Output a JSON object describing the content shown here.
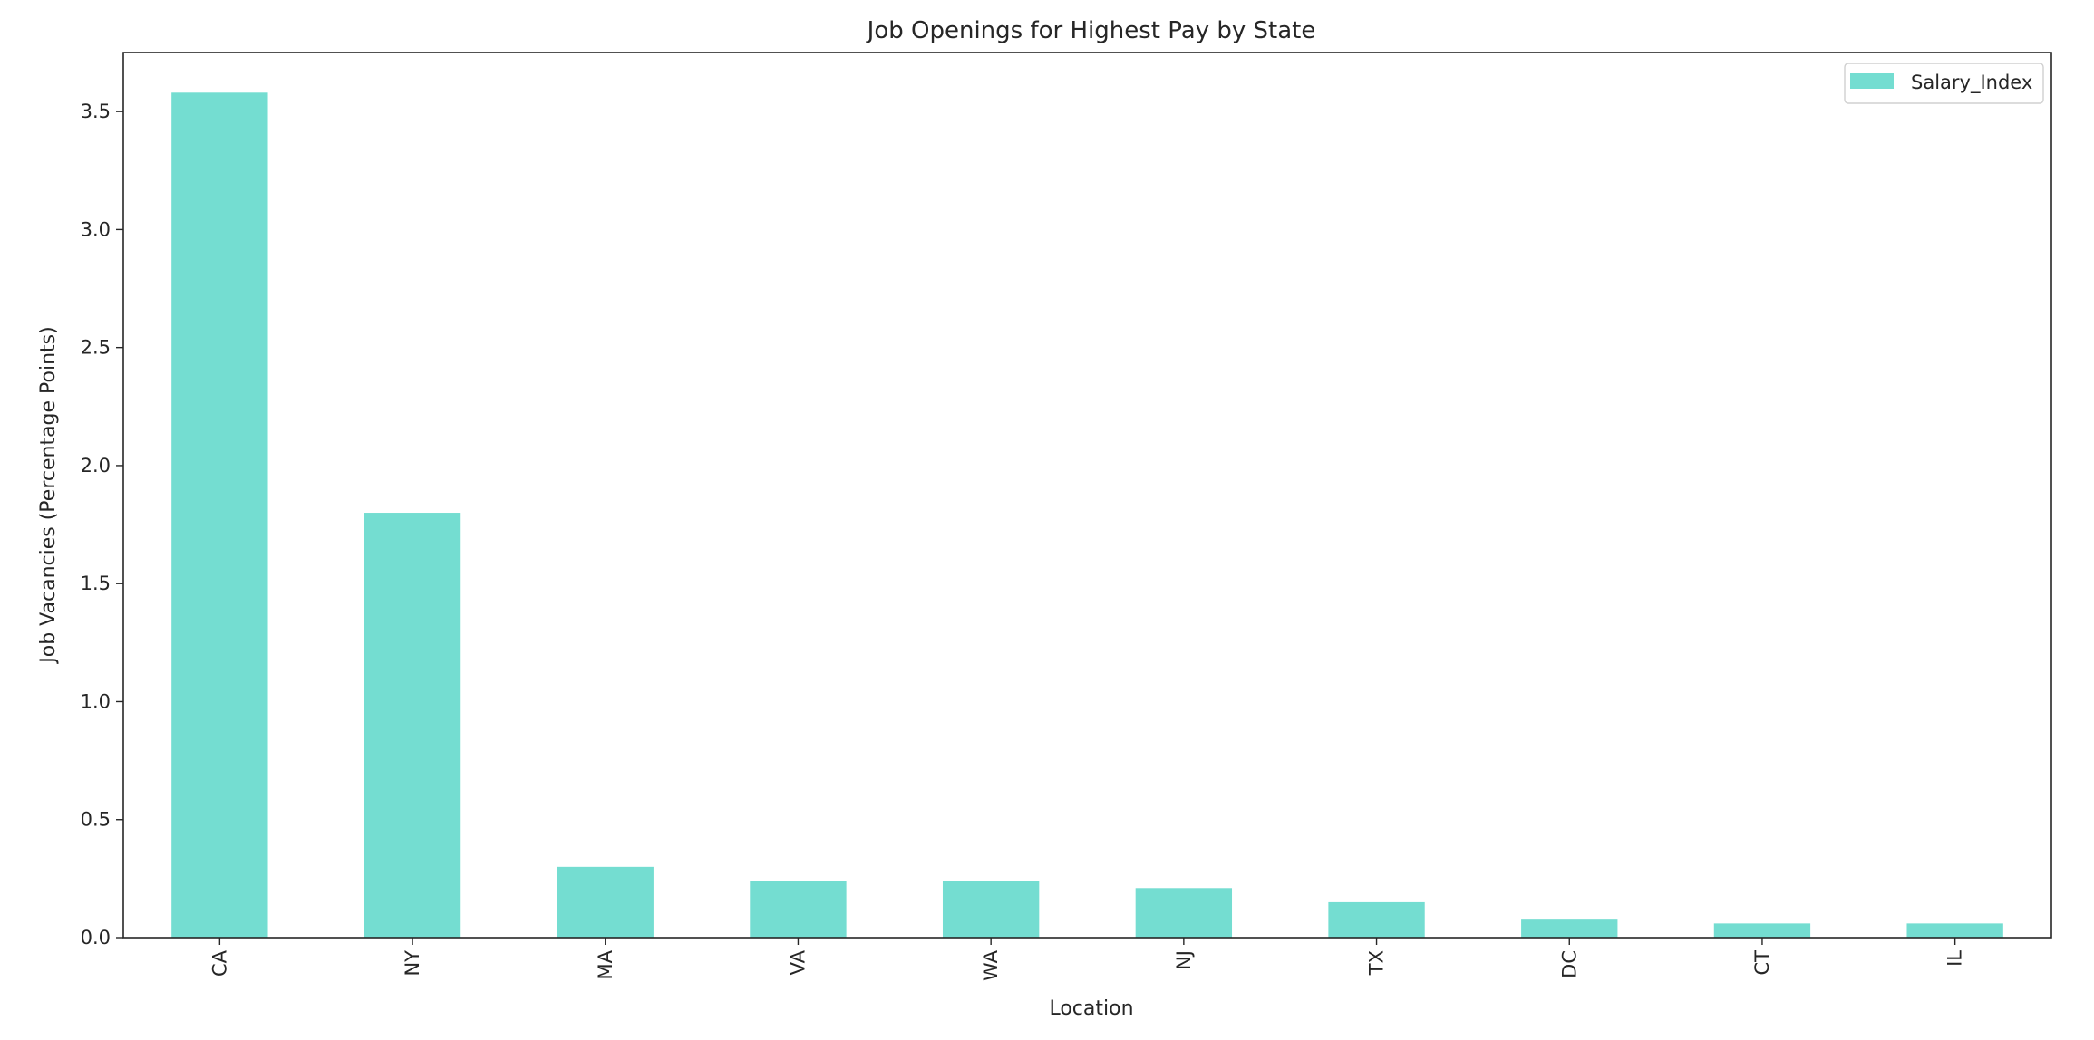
{
  "chart_data": {
    "type": "bar",
    "title": "Job Openings for Highest Pay by State",
    "xlabel": "Location",
    "ylabel": "Job Vacancies (Percentage Points)",
    "categories": [
      "CA",
      "NY",
      "MA",
      "VA",
      "WA",
      "NJ",
      "TX",
      "DC",
      "CT",
      "IL"
    ],
    "series": [
      {
        "name": "Salary_Index",
        "values": [
          3.58,
          1.8,
          0.3,
          0.24,
          0.24,
          0.21,
          0.15,
          0.08,
          0.06,
          0.06
        ]
      }
    ],
    "ylim": [
      0,
      3.75
    ],
    "yticks": [
      "0.0",
      "0.5",
      "1.0",
      "1.5",
      "2.0",
      "2.5",
      "3.0",
      "3.5"
    ],
    "ytick_values": [
      0,
      0.5,
      1.0,
      1.5,
      2.0,
      2.5,
      3.0,
      3.5
    ],
    "bar_color": "#74ddd1",
    "grid": false,
    "legend_position": "top-right"
  }
}
